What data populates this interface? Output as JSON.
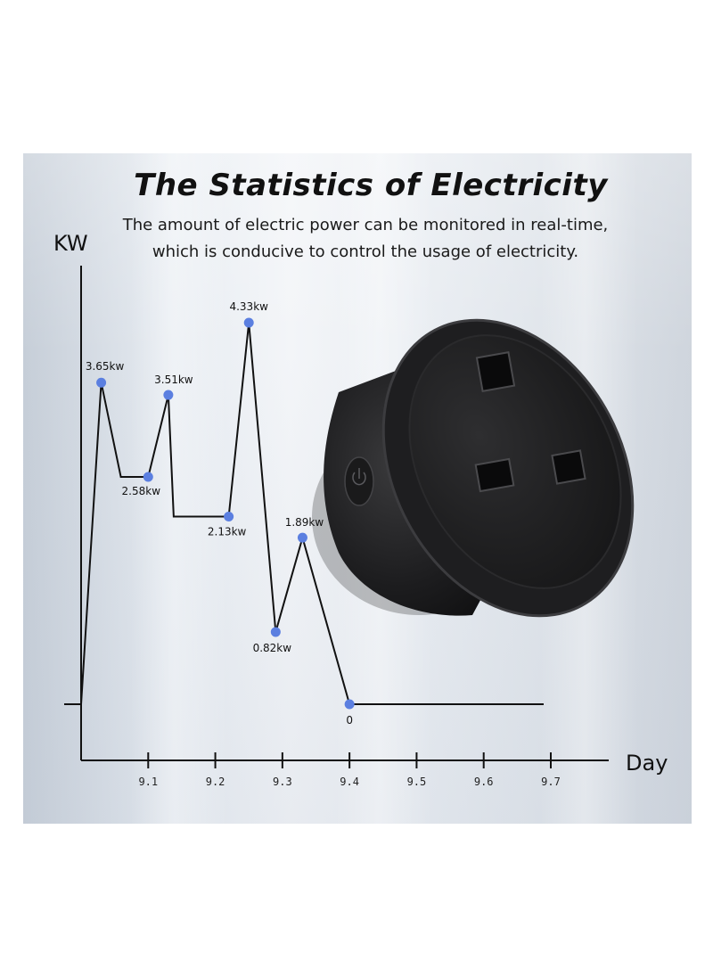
{
  "header": {
    "title": "The Statistics of Electricity",
    "subtitle_line1": "The amount of electric power can be monitored in real-time,",
    "subtitle_line2": "which is conducive to control the usage of electricity."
  },
  "colors": {
    "point": "#5b7fe0",
    "line": "#111111"
  },
  "product_image": "black round smart plug with UK three-pin socket and power button",
  "chart_data": {
    "type": "line",
    "title": "",
    "xlabel": "Day",
    "ylabel": "KW",
    "x_ticks": [
      "9.1",
      "9.2",
      "9.3",
      "9.4",
      "9.5",
      "9.6",
      "9.7"
    ],
    "xlim": [
      9.0,
      9.7
    ],
    "ylim": [
      0,
      4.5
    ],
    "line_shape": "peaks with flat plateaus between data points",
    "points": [
      {
        "x": 9.03,
        "y": 3.65,
        "label": "3.65kw"
      },
      {
        "x": 9.1,
        "y": 2.58,
        "label": "2.58kw"
      },
      {
        "x": 9.13,
        "y": 3.51,
        "label": "3.51kw"
      },
      {
        "x": 9.22,
        "y": 2.13,
        "label": "2.13kw"
      },
      {
        "x": 9.25,
        "y": 4.33,
        "label": "4.33kw"
      },
      {
        "x": 9.29,
        "y": 0.82,
        "label": "0.82kw"
      },
      {
        "x": 9.33,
        "y": 1.89,
        "label": "1.89kw"
      },
      {
        "x": 9.4,
        "y": 0,
        "label": "0"
      }
    ]
  }
}
